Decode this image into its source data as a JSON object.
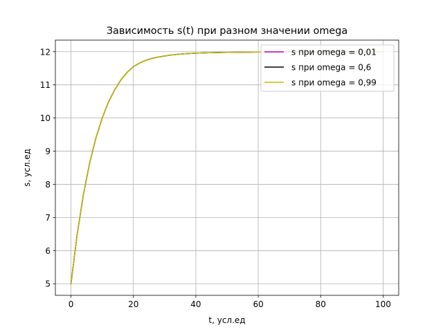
{
  "chart_data": {
    "type": "line",
    "title": "Зависимость s(t) при разном значении omega",
    "xlabel": "t, усл.ед",
    "ylabel": "s, усл.ед",
    "xlim": [
      -5,
      105
    ],
    "ylim": [
      4.65,
      12.35
    ],
    "xticks": [
      0,
      20,
      40,
      60,
      80,
      100
    ],
    "yticks": [
      5,
      6,
      7,
      8,
      9,
      10,
      11,
      12
    ],
    "grid": true,
    "legend_position": "top-right",
    "x": [
      0,
      2,
      4,
      6,
      8,
      10,
      12,
      14,
      16,
      18,
      20,
      22,
      24,
      26,
      28,
      30,
      32,
      34,
      36,
      38,
      40,
      42,
      44,
      46,
      48,
      50,
      55,
      60,
      65,
      70,
      75,
      80,
      85,
      90,
      95,
      100
    ],
    "series": [
      {
        "name": "s при omega = 0,01",
        "color": "#bf00bf",
        "values": [
          5.0,
          6.5,
          7.7,
          8.65,
          9.4,
          10.0,
          10.48,
          10.85,
          11.15,
          11.38,
          11.55,
          11.66,
          11.74,
          11.8,
          11.84,
          11.87,
          11.9,
          11.92,
          11.935,
          11.945,
          11.955,
          11.962,
          11.968,
          11.973,
          11.977,
          11.98,
          11.986,
          11.99,
          11.993,
          11.995,
          11.997,
          11.998,
          11.998,
          11.999,
          11.999,
          12.0
        ]
      },
      {
        "name": "s при omega = 0,6",
        "color": "#000000",
        "values": [
          5.0,
          6.5,
          7.7,
          8.65,
          9.4,
          10.0,
          10.48,
          10.85,
          11.15,
          11.38,
          11.55,
          11.66,
          11.74,
          11.8,
          11.84,
          11.87,
          11.9,
          11.92,
          11.935,
          11.945,
          11.955,
          11.962,
          11.968,
          11.973,
          11.977,
          11.98,
          11.986,
          11.99,
          11.993,
          11.995,
          11.997,
          11.998,
          11.998,
          11.999,
          11.999,
          12.0
        ]
      },
      {
        "name": "s при omega = 0,99",
        "color": "#bfbf00",
        "values": [
          5.0,
          6.5,
          7.7,
          8.65,
          9.4,
          10.0,
          10.48,
          10.85,
          11.15,
          11.38,
          11.55,
          11.66,
          11.74,
          11.8,
          11.84,
          11.87,
          11.9,
          11.92,
          11.935,
          11.945,
          11.955,
          11.962,
          11.968,
          11.973,
          11.977,
          11.98,
          11.986,
          11.99,
          11.993,
          11.995,
          11.997,
          11.998,
          11.998,
          11.999,
          11.999,
          12.0
        ]
      }
    ]
  }
}
